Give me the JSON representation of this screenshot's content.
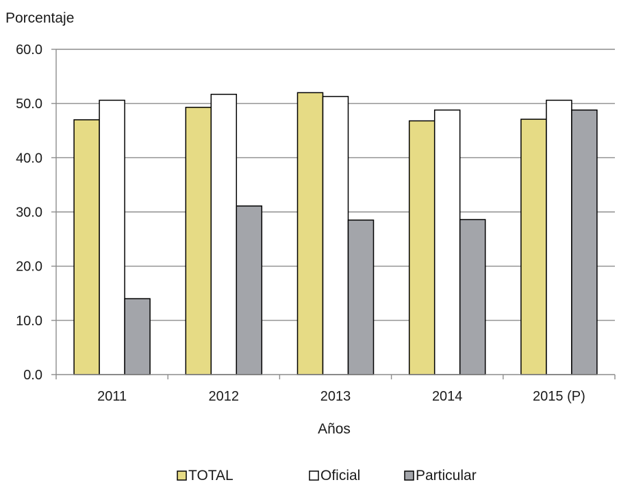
{
  "chart_data": {
    "type": "bar",
    "ylabel": "Porcentaje",
    "xlabel": "Años",
    "categories": [
      "2011",
      "2012",
      "2013",
      "2014",
      "2015 (P)"
    ],
    "series": [
      {
        "name": "TOTAL",
        "values": [
          47.0,
          49.3,
          52.0,
          46.8,
          47.1
        ],
        "color": "#e6db85"
      },
      {
        "name": "Oficial",
        "values": [
          50.6,
          51.7,
          51.3,
          48.8,
          50.6
        ],
        "color": "#ffffff"
      },
      {
        "name": "Particular",
        "values": [
          14.0,
          31.1,
          28.5,
          28.6,
          48.8
        ],
        "color": "#a3a5aa"
      }
    ],
    "ylim": [
      0,
      60
    ],
    "yticks": [
      "0.0",
      "10.0",
      "20.0",
      "30.0",
      "40.0",
      "50.0",
      "60.0"
    ],
    "grid": true,
    "legend_position": "bottom"
  }
}
